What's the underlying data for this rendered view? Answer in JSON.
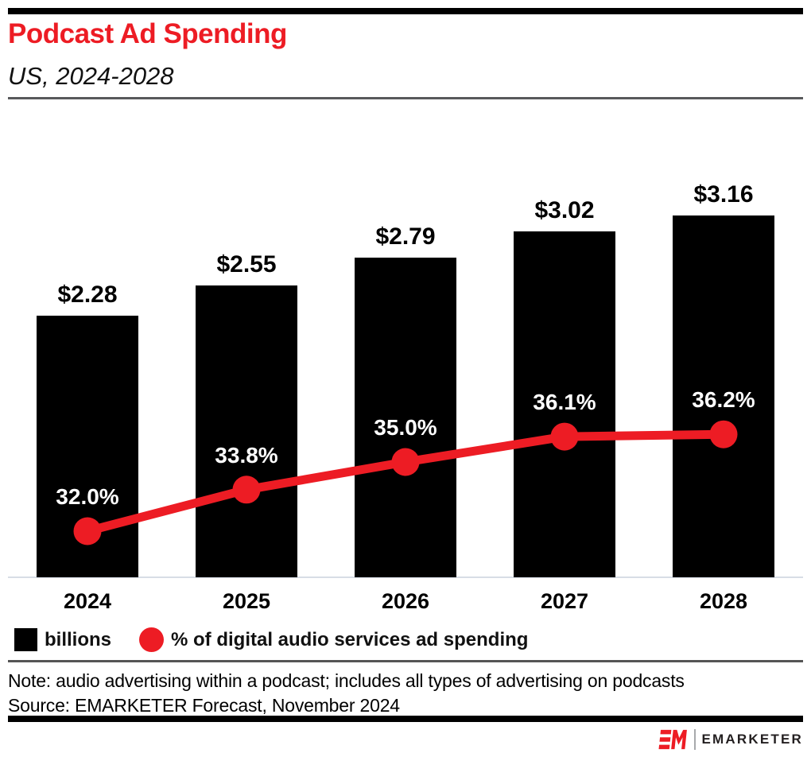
{
  "page": {
    "background": "#ffffff",
    "accent_red": "#ED1C24",
    "bar_black": "#000000"
  },
  "header": {
    "title": "Podcast Ad Spending",
    "subtitle": "US, 2024-2028"
  },
  "chart_data": {
    "type": "bar",
    "title": "Podcast Ad Spending",
    "subtitle": "US, 2024-2028",
    "categories": [
      "2024",
      "2025",
      "2026",
      "2027",
      "2028"
    ],
    "series": [
      {
        "name": "billions",
        "type": "bar",
        "color": "#000000",
        "unit": "US$ billions",
        "values": [
          2.28,
          2.55,
          2.79,
          3.02,
          3.16
        ],
        "labels": [
          "$2.28",
          "$2.55",
          "$2.79",
          "$3.02",
          "$3.16"
        ]
      },
      {
        "name": "% of digital audio services ad spending",
        "type": "line",
        "color": "#ED1C24",
        "unit": "percent",
        "values": [
          32.0,
          33.8,
          35.0,
          36.1,
          36.2
        ],
        "labels": [
          "32.0%",
          "33.8%",
          "35.0%",
          "36.1%",
          "36.2%"
        ]
      }
    ],
    "xlabel": "",
    "ylabel": "",
    "grid": false,
    "legend_position": "bottom"
  },
  "legend": {
    "items": [
      {
        "label": "billions",
        "swatch": "square",
        "color": "#000000"
      },
      {
        "label": "% of digital audio services ad spending",
        "swatch": "circle",
        "color": "#ED1C24"
      }
    ]
  },
  "footnotes": {
    "note": "Note: audio advertising within a podcast; includes all types of advertising on podcasts",
    "source": "Source: EMARKETER Forecast, November 2024"
  },
  "branding": {
    "monogram": "EM",
    "wordmark": "EMARKETER"
  }
}
